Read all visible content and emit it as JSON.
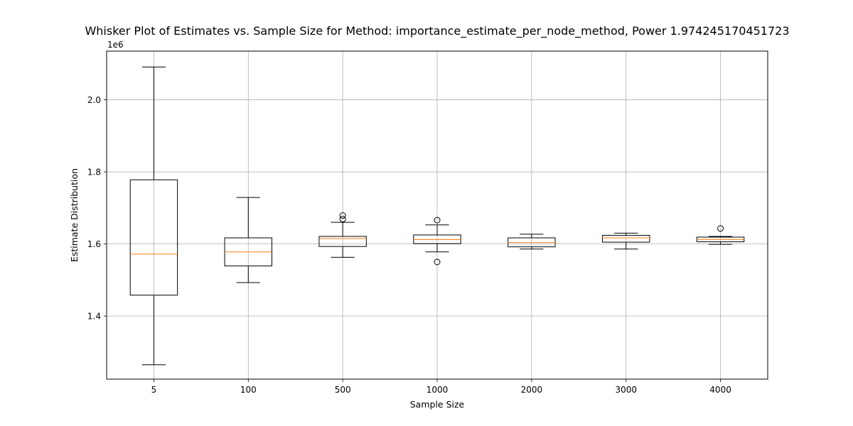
{
  "chart_data": {
    "type": "box",
    "title": "Whisker Plot of Estimates vs. Sample Size for Method: importance_estimate_per_node_method, Power 1.974245170451723",
    "xlabel": "Sample Size",
    "ylabel": "Estimate Distribution",
    "y_offset_label": "1e6",
    "y_scale": 1000000,
    "ylim": [
      1.225,
      2.135
    ],
    "yticks": [
      1.4,
      1.6,
      1.8,
      2.0
    ],
    "ytick_labels": [
      "1.4",
      "1.6",
      "1.8",
      "2.0"
    ],
    "grid": true,
    "categories": [
      "5",
      "100",
      "500",
      "1000",
      "2000",
      "3000",
      "4000"
    ],
    "boxes": [
      {
        "whisker_low": 1.265,
        "q1": 1.458,
        "median": 1.572,
        "q3": 1.778,
        "whisker_high": 2.091,
        "outliers": []
      },
      {
        "whisker_low": 1.493,
        "q1": 1.539,
        "median": 1.578,
        "q3": 1.617,
        "whisker_high": 1.729,
        "outliers": []
      },
      {
        "whisker_low": 1.563,
        "q1": 1.593,
        "median": 1.615,
        "q3": 1.621,
        "whisker_high": 1.66,
        "outliers": [
          1.669,
          1.679
        ]
      },
      {
        "whisker_low": 1.578,
        "q1": 1.601,
        "median": 1.612,
        "q3": 1.625,
        "whisker_high": 1.653,
        "outliers": [
          1.55,
          1.666
        ]
      },
      {
        "whisker_low": 1.586,
        "q1": 1.592,
        "median": 1.604,
        "q3": 1.617,
        "whisker_high": 1.627,
        "outliers": []
      },
      {
        "whisker_low": 1.586,
        "q1": 1.605,
        "median": 1.617,
        "q3": 1.624,
        "whisker_high": 1.63,
        "outliers": []
      },
      {
        "whisker_low": 1.599,
        "q1": 1.606,
        "median": 1.612,
        "q3": 1.619,
        "whisker_high": 1.621,
        "outliers": [
          1.643
        ]
      }
    ],
    "colors": {
      "box": "#000000",
      "median": "#ff7f0e",
      "grid": "#b0b0b0"
    }
  }
}
